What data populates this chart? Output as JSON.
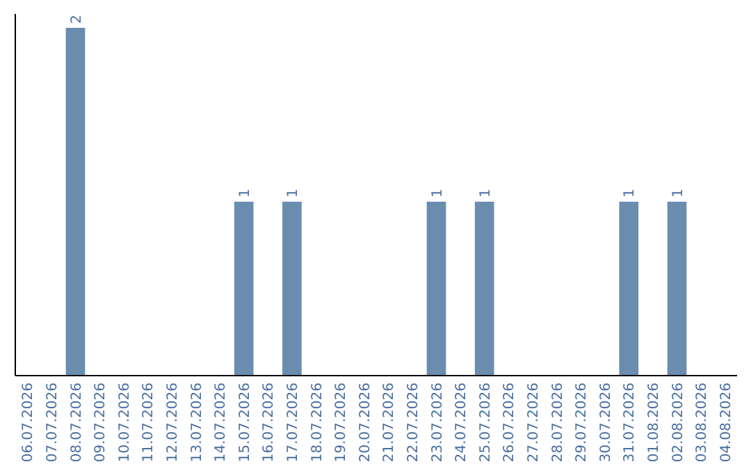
{
  "chart_data": {
    "type": "bar",
    "categories": [
      "06.07.2026",
      "07.07.2026",
      "08.07.2026",
      "09.07.2026",
      "10.07.2026",
      "11.07.2026",
      "12.07.2026",
      "13.07.2026",
      "14.07.2026",
      "15.07.2026",
      "16.07.2026",
      "17.07.2026",
      "18.07.2026",
      "19.07.2026",
      "20.07.2026",
      "21.07.2026",
      "22.07.2026",
      "23.07.2026",
      "24.07.2026",
      "25.07.2026",
      "26.07.2026",
      "27.07.2026",
      "28.07.2026",
      "29.07.2026",
      "30.07.2026",
      "31.07.2026",
      "01.08.2026",
      "02.08.2026",
      "03.08.2026",
      "04.08.2026"
    ],
    "values": [
      0,
      0,
      2,
      0,
      0,
      0,
      0,
      0,
      0,
      1,
      0,
      1,
      0,
      0,
      0,
      0,
      0,
      1,
      0,
      1,
      0,
      0,
      0,
      0,
      0,
      1,
      0,
      1,
      0,
      0
    ],
    "value_labels": [
      null,
      null,
      "2",
      null,
      null,
      null,
      null,
      null,
      null,
      "1",
      null,
      "1",
      null,
      null,
      null,
      null,
      null,
      "1",
      null,
      "1",
      null,
      null,
      null,
      null,
      null,
      "1",
      null,
      "1",
      null,
      null
    ],
    "color": "#6a8caf"
  }
}
